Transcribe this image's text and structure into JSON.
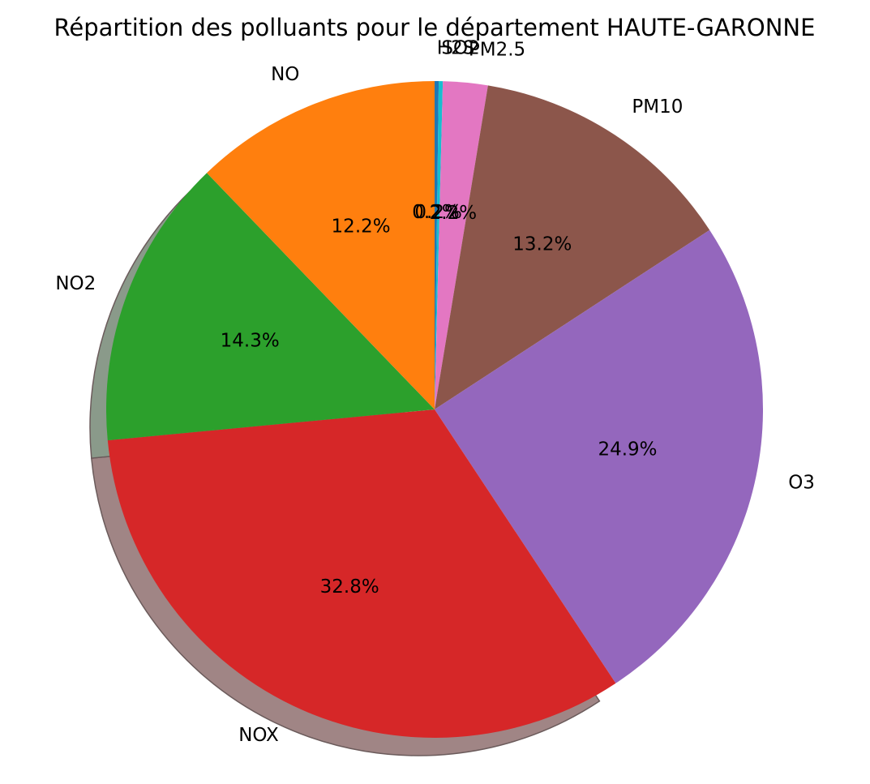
{
  "chart_data": {
    "type": "pie",
    "title": "Répartition des polluants pour le département HAUTE-GARONNE",
    "categories": [
      "H2S",
      "SO2",
      "PM2.5",
      "PM10",
      "O3",
      "NOX",
      "NO2",
      "NO"
    ],
    "values": [
      0.2,
      0.2,
      2.2,
      13.2,
      24.9,
      32.8,
      14.3,
      12.2
    ],
    "value_labels": [
      "0.2%",
      "0.2%",
      "2.2%",
      "13.2%",
      "24.9%",
      "32.8%",
      "14.3%",
      "12.2%"
    ],
    "colors": [
      "#1f77b4",
      "#17becf",
      "#e377c2",
      "#8c564b",
      "#9467bd",
      "#d62728",
      "#2ca02c",
      "#ff7f0e"
    ],
    "start_angle_deg": 90,
    "direction": "clockwise",
    "shadow": true,
    "legend": "none"
  }
}
